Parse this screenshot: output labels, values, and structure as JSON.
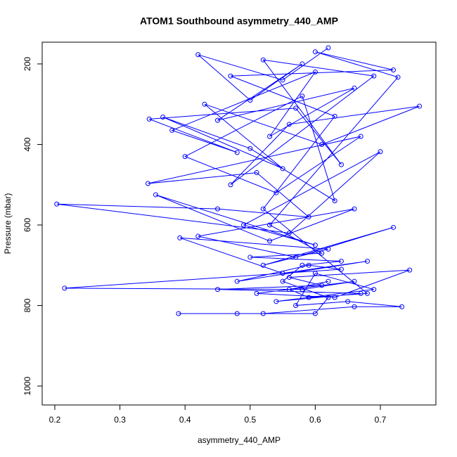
{
  "chart_data": {
    "type": "line",
    "title": "ATOM1 Southbound asymmetry_440_AMP",
    "x_label": "asymmetry_440_AMP",
    "y_label": "Pressure (mbar)",
    "color": "#0000ff",
    "markers": true,
    "y_inverted": true,
    "xlim": [
      0.1806,
      0.7853
    ],
    "ylim": [
      146,
      1047
    ],
    "xticks": [
      0.2,
      0.3,
      0.4,
      0.5,
      0.6,
      0.7
    ],
    "yticks": [
      200,
      400,
      600,
      800,
      1000
    ],
    "x": [
      0.62,
      0.55,
      0.42,
      0.5,
      0.58,
      0.45,
      0.66,
      0.53,
      0.6,
      0.38,
      0.48,
      0.345,
      0.57,
      0.64,
      0.52,
      0.69,
      0.47,
      0.56,
      0.76,
      0.61,
      0.43,
      0.55,
      0.366,
      0.5,
      0.63,
      0.58,
      0.4,
      0.54,
      0.67,
      0.343,
      0.51,
      0.59,
      0.45,
      0.203,
      0.56,
      0.7,
      0.49,
      0.6,
      0.355,
      0.53,
      0.66,
      0.42,
      0.57,
      0.72,
      0.52,
      0.62,
      0.392,
      0.55,
      0.68,
      0.48,
      0.59,
      0.64,
      0.215,
      0.58,
      0.66,
      0.51,
      0.63,
      0.745,
      0.56,
      0.61,
      0.45,
      0.67,
      0.54,
      0.69,
      0.6,
      0.57,
      0.65,
      0.733,
      0.66,
      0.52,
      0.39,
      0.48,
      0.6,
      0.62,
      0.55,
      0.58,
      0.64,
      0.5,
      0.61,
      0.53,
      0.727,
      0.6,
      0.72,
      0.47,
      0.63,
      0.52,
      0.68,
      0.59,
      0.56,
      0.62
    ],
    "values": [
      160,
      240,
      177,
      290,
      200,
      340,
      260,
      380,
      220,
      365,
      420,
      337,
      310,
      450,
      190,
      230,
      500,
      350,
      305,
      400,
      300,
      460,
      332,
      410,
      540,
      280,
      430,
      520,
      380,
      497,
      470,
      580,
      560,
      548,
      620,
      418,
      600,
      650,
      525,
      640,
      560,
      628,
      680,
      606,
      700,
      660,
      632,
      720,
      690,
      740,
      700,
      710,
      757,
      760,
      740,
      770,
      780,
      712,
      730,
      750,
      760,
      770,
      790,
      760,
      720,
      800,
      790,
      803,
      803,
      820,
      820,
      820,
      820,
      780,
      740,
      700,
      690,
      680,
      670,
      600,
      233,
      170,
      215,
      230,
      330,
      560,
      770,
      780,
      760,
      740
    ]
  }
}
